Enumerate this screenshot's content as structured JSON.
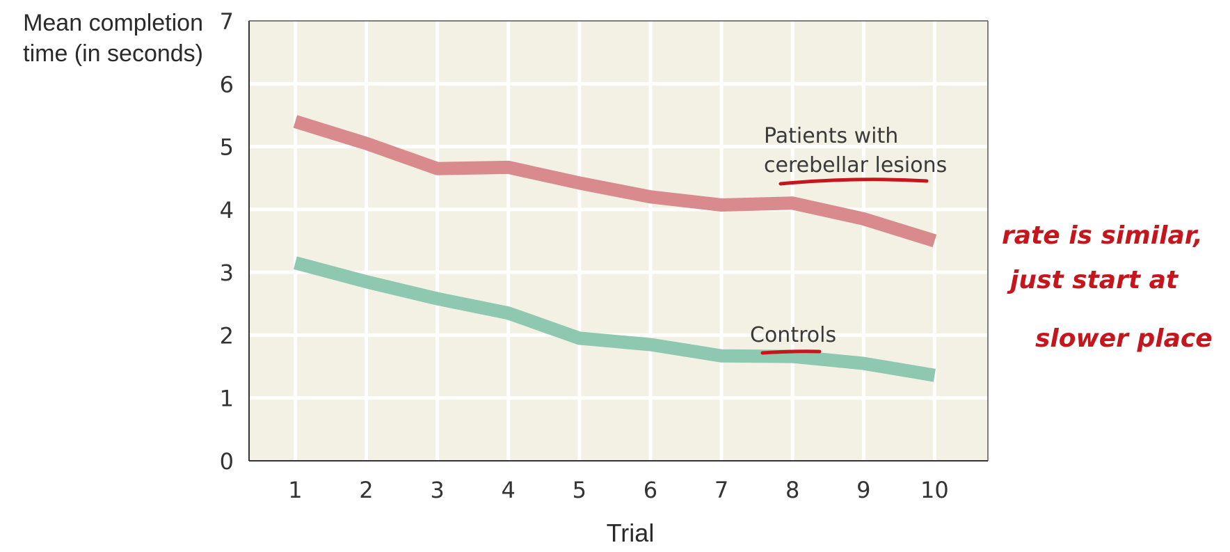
{
  "chart_data": {
    "type": "line",
    "title": "",
    "xlabel": "Trial",
    "ylabel_lines": [
      "Mean completion",
      "time (in seconds)"
    ],
    "x": [
      1,
      2,
      3,
      4,
      5,
      6,
      7,
      8,
      9,
      10
    ],
    "xlim": [
      0.35,
      10.75
    ],
    "ylim": [
      0,
      7
    ],
    "yticks": [
      0,
      1,
      2,
      3,
      4,
      5,
      6,
      7
    ],
    "grid": true,
    "series": [
      {
        "name_lines": [
          "Patients with",
          "cerebellar lesions"
        ],
        "values": [
          5.4,
          5.05,
          4.65,
          4.67,
          4.42,
          4.2,
          4.07,
          4.1,
          3.85,
          3.5
        ],
        "color": "#d98a8d"
      },
      {
        "name_lines": [
          "Controls"
        ],
        "values": [
          3.15,
          2.85,
          2.58,
          2.35,
          1.95,
          1.85,
          1.67,
          1.66,
          1.55,
          1.36
        ],
        "color": "#8ec8b0"
      }
    ],
    "colors": {
      "plot_background": "#f3f1e3",
      "grid": "#ffffff",
      "axis": "#333333"
    }
  },
  "annotation": {
    "lines": [
      "rate is similar,",
      "just start at",
      "slower place"
    ],
    "color": "#c4161c"
  }
}
